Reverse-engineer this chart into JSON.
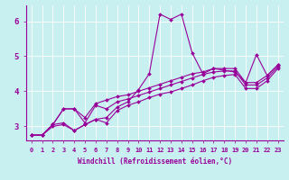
{
  "xlabel": "Windchill (Refroidissement éolien,°C)",
  "bg_color": "#c8f0f0",
  "line_color": "#990099",
  "marker": "D",
  "marker_size": 2,
  "linewidth": 0.8,
  "xlim": [
    -0.5,
    23.5
  ],
  "ylim": [
    2.6,
    6.45
  ],
  "xticks": [
    0,
    1,
    2,
    3,
    4,
    5,
    6,
    7,
    8,
    9,
    10,
    11,
    12,
    13,
    14,
    15,
    16,
    17,
    18,
    19,
    20,
    21,
    22,
    23
  ],
  "yticks": [
    3,
    4,
    5,
    6
  ],
  "series": [
    [
      2.75,
      2.75,
      3.05,
      3.1,
      2.88,
      3.05,
      3.2,
      3.25,
      3.55,
      3.7,
      4.05,
      4.5,
      6.2,
      6.05,
      6.2,
      5.1,
      4.5,
      4.65,
      4.6,
      4.55,
      4.25,
      5.05,
      4.45,
      4.75
    ],
    [
      2.75,
      2.75,
      3.05,
      3.5,
      3.5,
      3.25,
      3.65,
      3.75,
      3.85,
      3.9,
      4.0,
      4.1,
      4.2,
      4.3,
      4.4,
      4.5,
      4.55,
      4.65,
      4.65,
      4.65,
      4.25,
      4.25,
      4.45,
      4.75
    ],
    [
      2.75,
      2.75,
      3.05,
      3.5,
      3.5,
      3.1,
      3.6,
      3.5,
      3.7,
      3.78,
      3.88,
      3.98,
      4.08,
      4.18,
      4.28,
      4.38,
      4.48,
      4.55,
      4.58,
      4.58,
      4.18,
      4.18,
      4.38,
      4.7
    ],
    [
      2.75,
      2.75,
      3.0,
      3.05,
      2.88,
      3.05,
      3.2,
      3.1,
      3.45,
      3.6,
      3.7,
      3.82,
      3.92,
      3.98,
      4.08,
      4.18,
      4.3,
      4.4,
      4.45,
      4.48,
      4.08,
      4.08,
      4.3,
      4.65
    ]
  ]
}
